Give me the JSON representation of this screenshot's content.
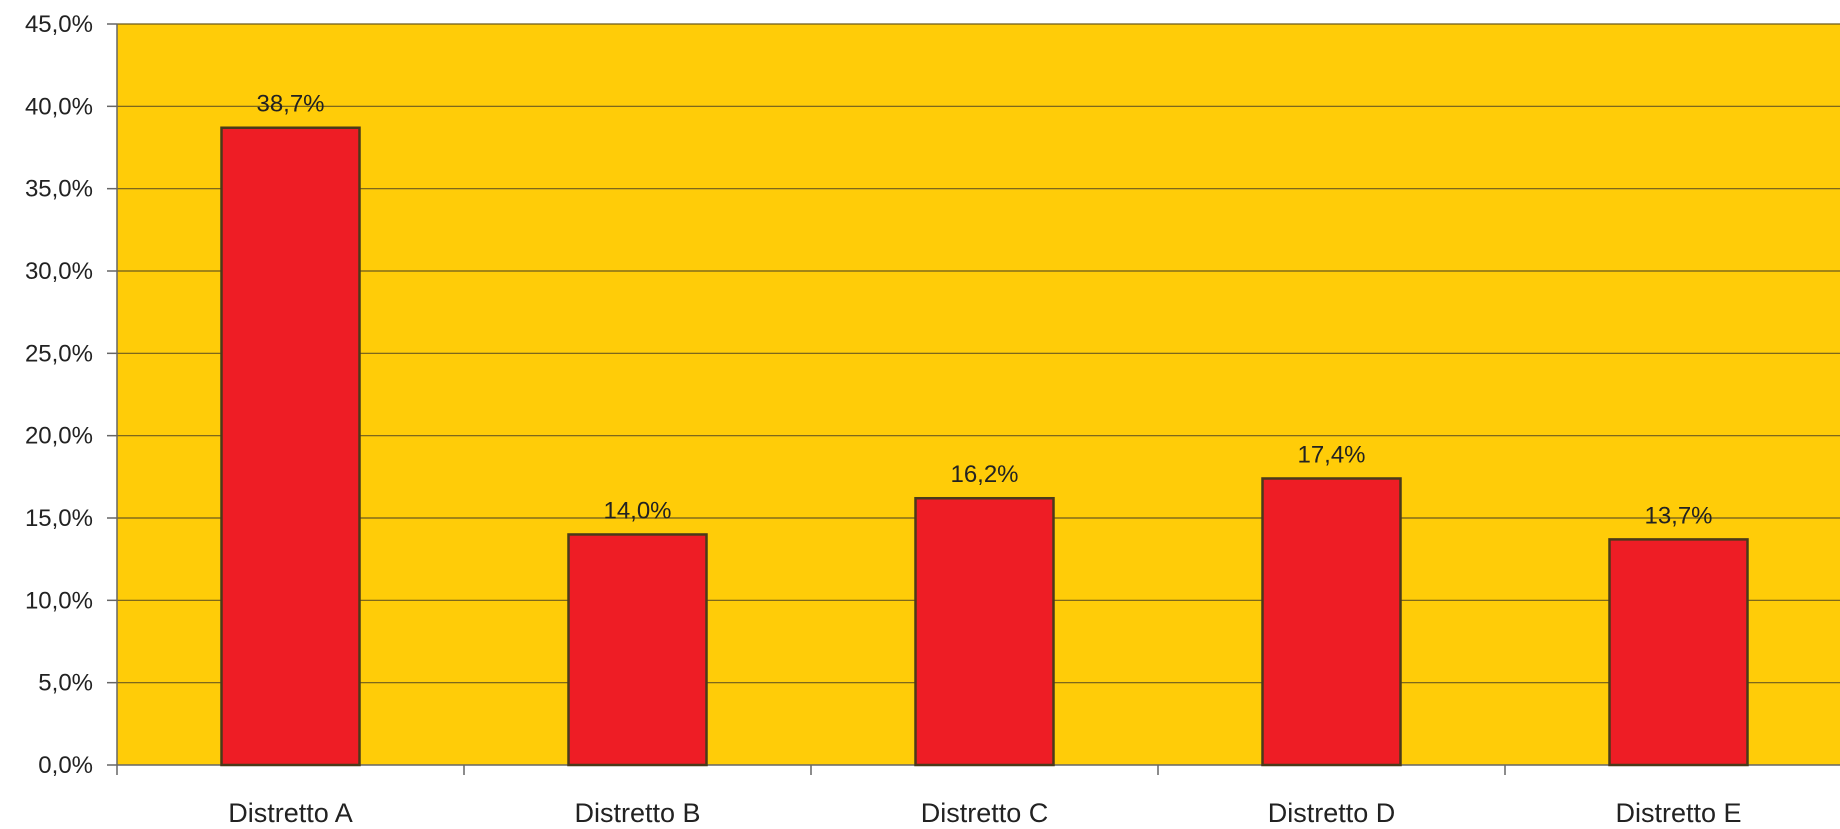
{
  "chart_data": {
    "type": "bar",
    "title": "",
    "xlabel": "",
    "ylabel": "",
    "categories": [
      "Distretto A",
      "Distretto B",
      "Distretto C",
      "Distretto D",
      "Distretto E"
    ],
    "values": [
      38.7,
      14.0,
      16.2,
      17.4,
      13.7
    ],
    "value_labels": [
      "38,7%",
      "14,0%",
      "16,2%",
      "17,4%",
      "13,7%"
    ],
    "ylim": [
      0,
      45
    ],
    "yticks": [
      0,
      5,
      10,
      15,
      20,
      25,
      30,
      35,
      40,
      45
    ],
    "ytick_labels": [
      "0,0%",
      "5,0%",
      "10,0%",
      "15,0%",
      "20,0%",
      "25,0%",
      "30,0%",
      "35,0%",
      "40,0%",
      "45,0%"
    ],
    "grid": true,
    "legend": "none",
    "colors": {
      "plot_background": "#FFCC08",
      "bar_fill": "#EE1D25",
      "bar_stroke": "#4A3A1A",
      "grid": "#6B5A1E",
      "axis": "#666666"
    }
  }
}
